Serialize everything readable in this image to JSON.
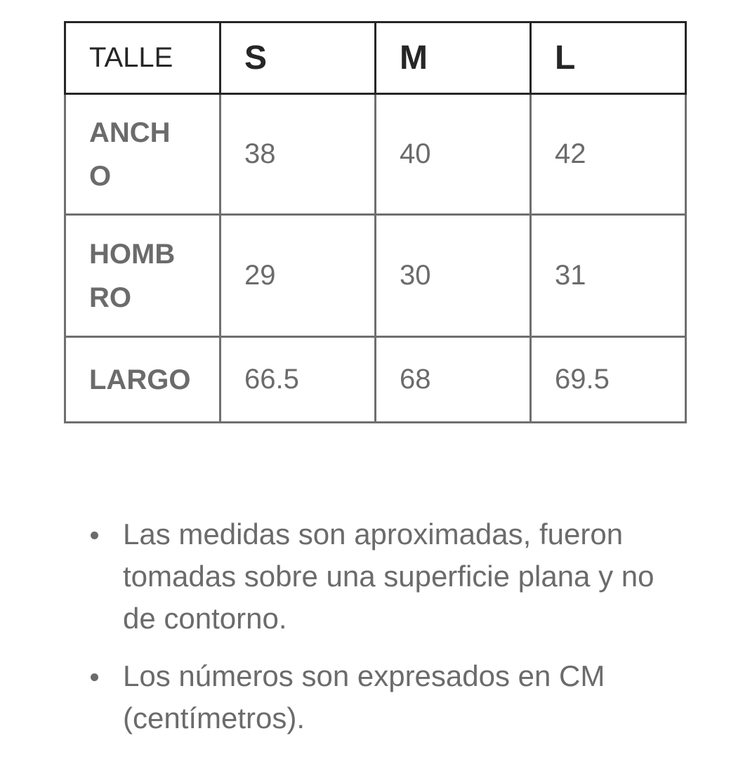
{
  "chart_data": {
    "type": "table",
    "columns": [
      "TALLE",
      "S",
      "M",
      "L"
    ],
    "rows": [
      [
        "ANCHO",
        "38",
        "40",
        "42"
      ],
      [
        "HOMBRO",
        "29",
        "30",
        "31"
      ],
      [
        "LARGO",
        "66.5",
        "68",
        "69.5"
      ]
    ]
  },
  "notes": [
    "Las medidas son aproximadas, fueron tomadas sobre una superficie plana y no de contorno.",
    "Los números son expresados en CM (centímetros)."
  ],
  "colors": {
    "header_text": "#262626",
    "header_border": "#262626",
    "body_text": "#6b6b6b",
    "body_border": "#6f6f6f",
    "background": "#ffffff"
  }
}
